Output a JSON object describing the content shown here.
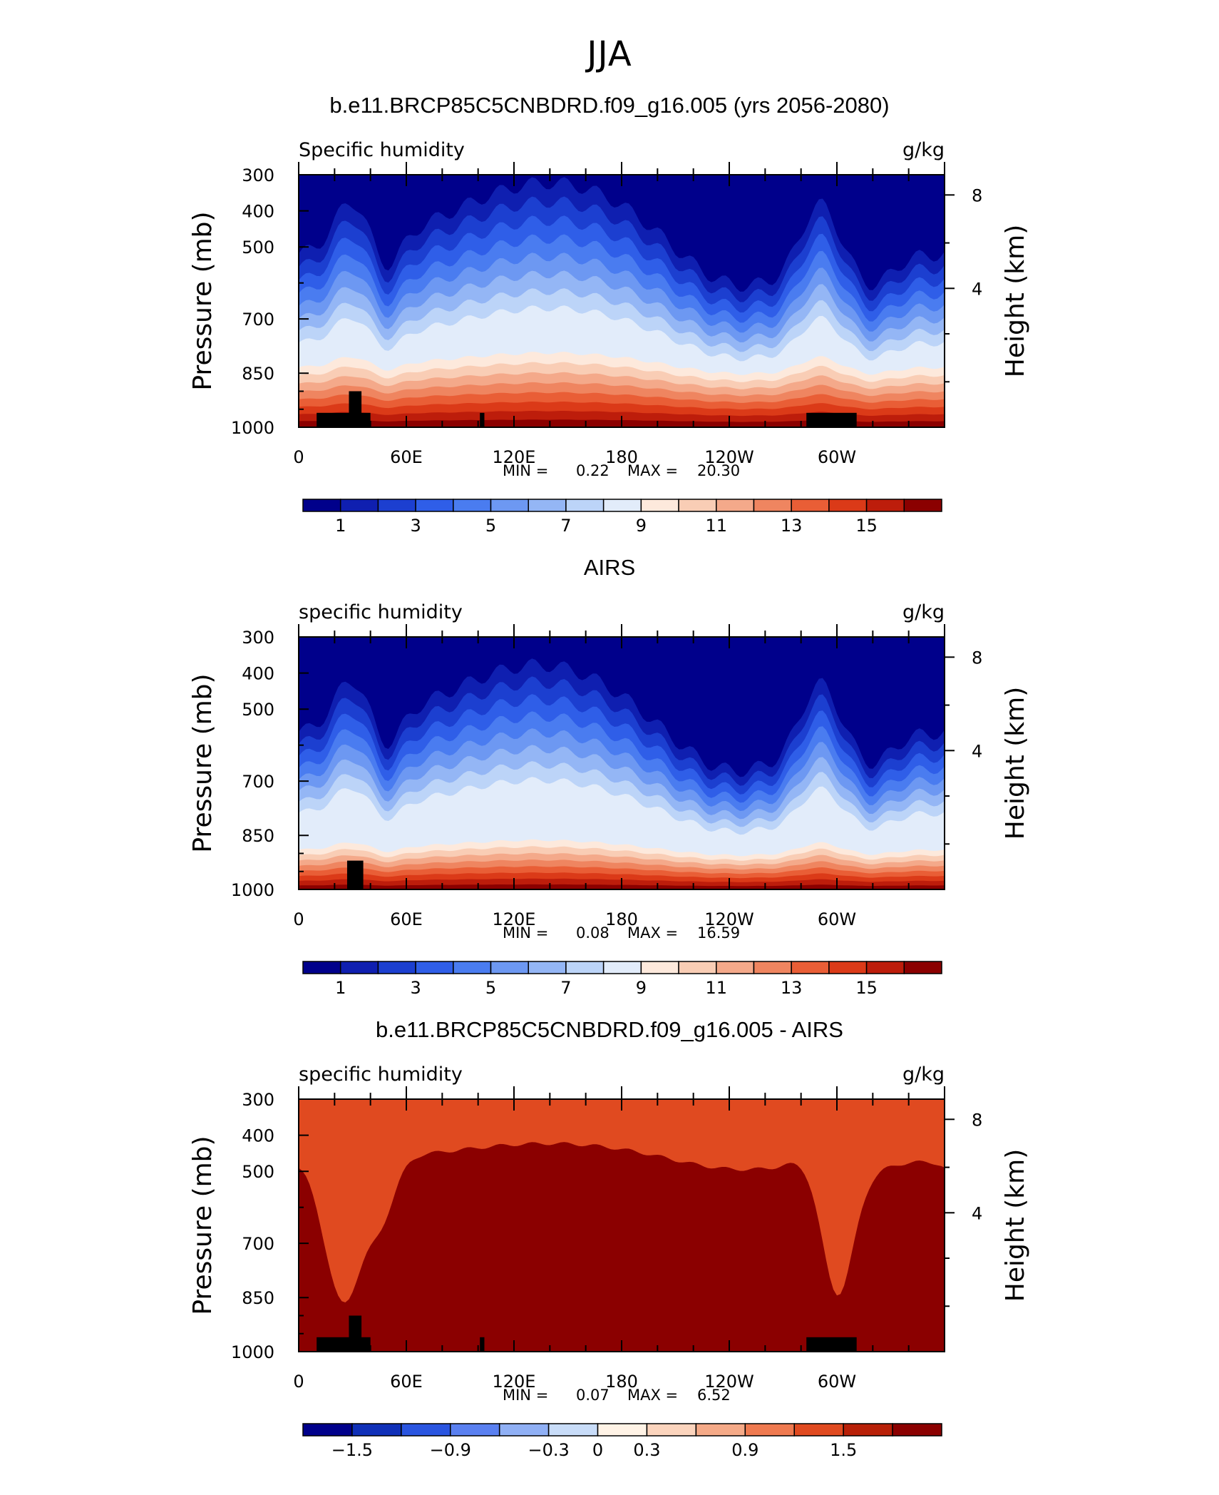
{
  "title": "JJA",
  "colors": {
    "seq": [
      "#00008b",
      "#0f1fb0",
      "#1c3fd0",
      "#2f5ee8",
      "#4a7cf0",
      "#6d98f2",
      "#94b6f5",
      "#bcd4f8",
      "#e2ecfa",
      "#fde9dc",
      "#f9cdb5",
      "#f4a98a",
      "#ef8560",
      "#e95e36",
      "#db3a18",
      "#bd1d0b",
      "#8b0000"
    ],
    "diff": [
      "#00008b",
      "#1030b8",
      "#2a55e0",
      "#5a80f0",
      "#90b0f5",
      "#c8dcf8",
      "#fff3e6",
      "#fbd4bd",
      "#f5aa88",
      "#ef7a50",
      "#e04a20",
      "#b82008",
      "#8b0000"
    ],
    "land": "#000000"
  },
  "chart_data": [
    {
      "type": "heatmap",
      "title": "b.e11.BRCP85C5CNBDRD.f09_g16.005 (yrs 2056-2080)",
      "left_label": "Specific humidity",
      "right_label": "g/kg",
      "ylabel": "Pressure (mb)",
      "ylabel_right": "Height (km)",
      "yticks": [
        "300",
        "400",
        "500",
        "700",
        "850",
        "1000"
      ],
      "yticks_right": [
        "8",
        "4"
      ],
      "xticks": [
        "0",
        "60E",
        "120E",
        "180",
        "120W",
        "60W"
      ],
      "xlim": [
        0,
        360
      ],
      "ylim": [
        1000,
        300
      ],
      "stats": {
        "min_label": "MIN =",
        "min": "0.22",
        "max_label": "MAX =",
        "max": "20.30"
      },
      "colorbar_labels": [
        "1",
        "3",
        "5",
        "7",
        "9",
        "11",
        "13",
        "15"
      ],
      "palette": "seq",
      "mode": "model"
    },
    {
      "type": "heatmap",
      "title": "AIRS",
      "left_label": "specific humidity",
      "right_label": "g/kg",
      "ylabel": "Pressure (mb)",
      "ylabel_right": "Height (km)",
      "yticks": [
        "300",
        "400",
        "500",
        "700",
        "850",
        "1000"
      ],
      "yticks_right": [
        "8",
        "4"
      ],
      "xticks": [
        "0",
        "60E",
        "120E",
        "180",
        "120W",
        "60W"
      ],
      "xlim": [
        0,
        360
      ],
      "ylim": [
        1000,
        300
      ],
      "stats": {
        "min_label": "MIN =",
        "min": "0.08",
        "max_label": "MAX =",
        "max": "16.59"
      },
      "colorbar_labels": [
        "1",
        "3",
        "5",
        "7",
        "9",
        "11",
        "13",
        "15"
      ],
      "palette": "seq",
      "mode": "obs"
    },
    {
      "type": "heatmap",
      "title": "b.e11.BRCP85C5CNBDRD.f09_g16.005 - AIRS",
      "left_label": "specific humidity",
      "right_label": "g/kg",
      "ylabel": "Pressure (mb)",
      "ylabel_right": "Height (km)",
      "yticks": [
        "300",
        "400",
        "500",
        "700",
        "850",
        "1000"
      ],
      "yticks_right": [
        "8",
        "4"
      ],
      "xticks": [
        "0",
        "60E",
        "120E",
        "180",
        "120W",
        "60W"
      ],
      "xlim": [
        0,
        360
      ],
      "ylim": [
        1000,
        300
      ],
      "stats": {
        "min_label": "MIN =",
        "min": "0.07",
        "max_label": "MAX =",
        "max": "6.52"
      },
      "colorbar_labels": [
        "−1.5",
        "−0.9",
        "−0.3",
        "0",
        "0.3",
        "0.9",
        "1.5"
      ],
      "palette": "diff",
      "mode": "diff"
    }
  ]
}
